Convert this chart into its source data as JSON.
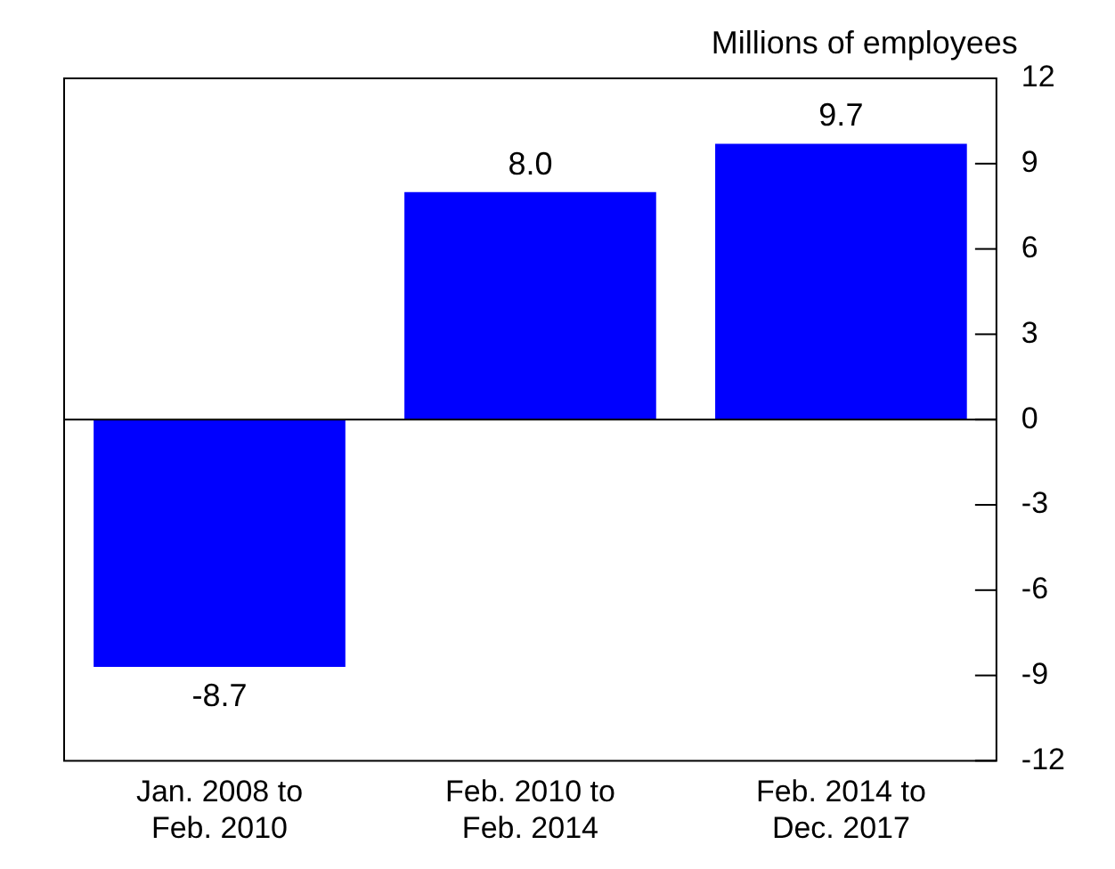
{
  "chart_data": {
    "type": "bar",
    "ylabel": "Millions of employees",
    "categories": [
      "Jan. 2008 to Feb. 2010",
      "Feb. 2010 to Feb. 2014",
      "Feb. 2014 to Dec. 2017"
    ],
    "values": [
      -8.7,
      8.0,
      9.7
    ],
    "color": "#0000ff",
    "value_labels": [
      "-8.7",
      "8.0",
      "9.7"
    ],
    "ylim": [
      -12,
      12
    ],
    "yticks": [
      -12,
      -9,
      -6,
      -3,
      0,
      3,
      6,
      9,
      12
    ],
    "ref_lines": [
      {
        "axis": "y",
        "value": 0
      }
    ],
    "grid": false,
    "legend": false
  }
}
